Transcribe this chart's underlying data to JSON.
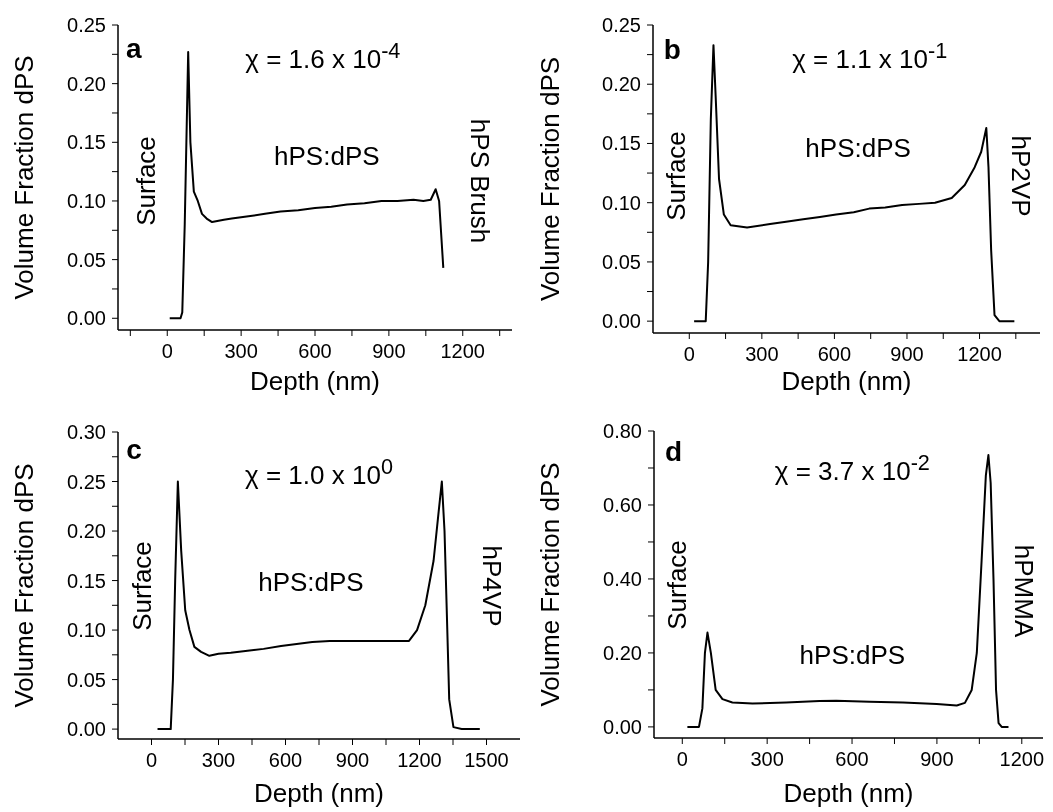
{
  "chart_data": [
    {
      "type": "line",
      "xlabel": "Depth (nm)",
      "ylabel": "Volume Fraction dPS",
      "annotations": [
        "a",
        "χ = 1.6 x 10$^{-4}$",
        "Surface",
        "hPS:dPS",
        "hPS Brush"
      ],
      "xlim": [
        -200,
        1400
      ],
      "xticks": [
        {
          "value": -150,
          "label": null
        },
        0,
        {
          "value": 150,
          "label": null
        },
        300,
        {
          "value": 450,
          "label": null
        },
        600,
        {
          "value": 750,
          "label": null
        },
        900,
        {
          "value": 1050,
          "label": null
        },
        1200,
        {
          "value": 1350,
          "label": null
        }
      ],
      "ylim": [
        -0.01,
        0.25
      ],
      "yticks": [
        {
          "value": 0,
          "label": "0.00"
        },
        {
          "value": 0.025,
          "label": null
        },
        0.05,
        {
          "value": 0.075,
          "label": null
        },
        {
          "value": 0.1,
          "label": "0.10"
        },
        {
          "value": 0.125,
          "label": null
        },
        0.15,
        {
          "value": 0.175,
          "label": null
        },
        {
          "value": 0.2,
          "label": "0.20"
        },
        {
          "value": 0.225,
          "label": null
        },
        0.25
      ],
      "x": [
        10,
        54,
        61,
        71,
        85,
        94,
        108,
        124,
        141,
        160,
        182,
        230,
        262,
        330,
        397,
        460,
        532,
        600,
        666,
        730,
        801,
        870,
        935,
        1000,
        1040,
        1070,
        1090,
        1104,
        1121
      ],
      "series": [
        {
          "color": "#000000",
          "values": [
            0,
            0,
            0.005,
            0.08,
            0.227,
            0.15,
            0.108,
            0.1,
            0.089,
            0.085,
            0.082,
            0.084,
            0.085,
            0.087,
            0.089,
            0.091,
            0.092,
            0.094,
            0.095,
            0.097,
            0.098,
            0.1,
            0.1,
            0.101,
            0.1,
            0.101,
            0.11,
            0.1,
            0.043
          ]
        }
      ]
    },
    {
      "type": "line",
      "xlabel": "Depth (nm)",
      "ylabel": "Volume Fraction dPS",
      "annotations": [
        "b",
        "χ = 1.1 x 10$^{-1}$",
        "Surface",
        "hPS:dPS",
        "hP2VP"
      ],
      "xlim": [
        -150,
        1450
      ],
      "xticks": [
        0,
        {
          "value": 150,
          "label": null
        },
        300,
        {
          "value": 450,
          "label": null
        },
        600,
        {
          "value": 750,
          "label": null
        },
        900,
        {
          "value": 1050,
          "label": null
        },
        1200,
        {
          "value": 1350,
          "label": null
        }
      ],
      "ylim": [
        -0.01,
        0.25
      ],
      "yticks": [
        {
          "value": 0,
          "label": "0.00"
        },
        {
          "value": 0.025,
          "label": null
        },
        0.05,
        {
          "value": 0.075,
          "label": null
        },
        {
          "value": 0.1,
          "label": "0.10"
        },
        {
          "value": 0.125,
          "label": null
        },
        0.15,
        {
          "value": 0.175,
          "label": null
        },
        {
          "value": 0.2,
          "label": "0.20"
        },
        {
          "value": 0.225,
          "label": null
        },
        0.25
      ],
      "x": [
        20,
        68,
        78,
        89,
        100,
        109,
        123,
        143,
        171,
        239,
        334,
        400,
        471,
        540,
        607,
        680,
        744,
        810,
        880,
        950,
        1016,
        1085,
        1139,
        1180,
        1207,
        1228,
        1237,
        1248,
        1262,
        1282,
        1344
      ],
      "series": [
        {
          "color": "#000000",
          "values": [
            0,
            0,
            0.05,
            0.17,
            0.233,
            0.19,
            0.12,
            0.09,
            0.081,
            0.079,
            0.082,
            0.084,
            0.086,
            0.088,
            0.09,
            0.092,
            0.095,
            0.096,
            0.098,
            0.099,
            0.1,
            0.104,
            0.115,
            0.13,
            0.143,
            0.163,
            0.13,
            0.06,
            0.005,
            0,
            0
          ]
        }
      ]
    },
    {
      "type": "line",
      "xlabel": "Depth (nm)",
      "ylabel": "Volume Fraction dPS",
      "annotations": [
        "c",
        "χ = 1.0 x 10$^{0}$",
        "Surface",
        "hPS:dPS",
        "hP4VP"
      ],
      "xlim": [
        -150,
        1650
      ],
      "xticks": [
        0,
        {
          "value": 150,
          "label": null
        },
        300,
        {
          "value": 450,
          "label": null
        },
        600,
        {
          "value": 750,
          "label": null
        },
        900,
        {
          "value": 1050,
          "label": null
        },
        1200,
        {
          "value": 1350,
          "label": null
        },
        1500
      ],
      "ylim": [
        -0.01,
        0.3
      ],
      "yticks": [
        {
          "value": 0,
          "label": "0.00"
        },
        {
          "value": 0.025,
          "label": null
        },
        0.05,
        {
          "value": 0.075,
          "label": null
        },
        {
          "value": 0.1,
          "label": "0.10"
        },
        {
          "value": 0.125,
          "label": null
        },
        0.15,
        {
          "value": 0.175,
          "label": null
        },
        {
          "value": 0.2,
          "label": "0.20"
        },
        {
          "value": 0.225,
          "label": null
        },
        0.25,
        {
          "value": 0.275,
          "label": null
        },
        {
          "value": 0.3,
          "label": "0.30"
        }
      ],
      "x": [
        27,
        86,
        96,
        106,
        118,
        133,
        151,
        170,
        192,
        222,
        259,
        300,
        355,
        430,
        502,
        580,
        650,
        720,
        798,
        870,
        946,
        1020,
        1094,
        1153,
        1189,
        1226,
        1263,
        1286,
        1300,
        1312,
        1322,
        1333,
        1352,
        1389,
        1470
      ],
      "series": [
        {
          "color": "#000000",
          "values": [
            0,
            0,
            0.05,
            0.15,
            0.25,
            0.18,
            0.12,
            0.1,
            0.083,
            0.078,
            0.074,
            0.076,
            0.077,
            0.079,
            0.081,
            0.084,
            0.086,
            0.088,
            0.089,
            0.089,
            0.089,
            0.089,
            0.089,
            0.089,
            0.1,
            0.125,
            0.17,
            0.22,
            0.25,
            0.2,
            0.12,
            0.03,
            0.002,
            0,
            0
          ]
        }
      ]
    },
    {
      "type": "line",
      "xlabel": "Depth (nm)",
      "ylabel": "Volume Fraction dPS",
      "annotations": [
        "d",
        "χ = 3.7 x 10$^{-2}$",
        "Surface",
        "hPS:dPS",
        "hPMMA"
      ],
      "xlim": [
        -100,
        1275
      ],
      "xticks": [
        0,
        {
          "value": 150,
          "label": null
        },
        300,
        {
          "value": 450,
          "label": null
        },
        600,
        {
          "value": 750,
          "label": null
        },
        900,
        {
          "value": 1050,
          "label": null
        },
        1200
      ],
      "ylim": [
        -0.03,
        0.8
      ],
      "yticks": [
        {
          "value": 0,
          "label": "0.00"
        },
        {
          "value": 0.1,
          "label": null
        },
        {
          "value": 0.2,
          "label": "0.20"
        },
        {
          "value": 0.3,
          "label": null
        },
        {
          "value": 0.4,
          "label": "0.40"
        },
        {
          "value": 0.5,
          "label": null
        },
        {
          "value": 0.6,
          "label": "0.60"
        },
        {
          "value": 0.7,
          "label": null
        },
        {
          "value": 0.8,
          "label": "0.80"
        }
      ],
      "x": [
        18,
        59,
        71,
        80,
        89,
        101,
        118,
        142,
        177,
        248,
        367,
        485,
        544,
        662,
        780,
        899,
        970,
        999,
        1023,
        1041,
        1058,
        1073,
        1082,
        1090,
        1100,
        1109,
        1118,
        1129,
        1153
      ],
      "series": [
        {
          "color": "#000000",
          "values": [
            0,
            0,
            0.05,
            0.2,
            0.255,
            0.2,
            0.1,
            0.075,
            0.066,
            0.063,
            0.066,
            0.07,
            0.071,
            0.068,
            0.066,
            0.062,
            0.058,
            0.065,
            0.1,
            0.2,
            0.45,
            0.68,
            0.735,
            0.66,
            0.4,
            0.1,
            0.01,
            0,
            0
          ]
        }
      ]
    }
  ]
}
